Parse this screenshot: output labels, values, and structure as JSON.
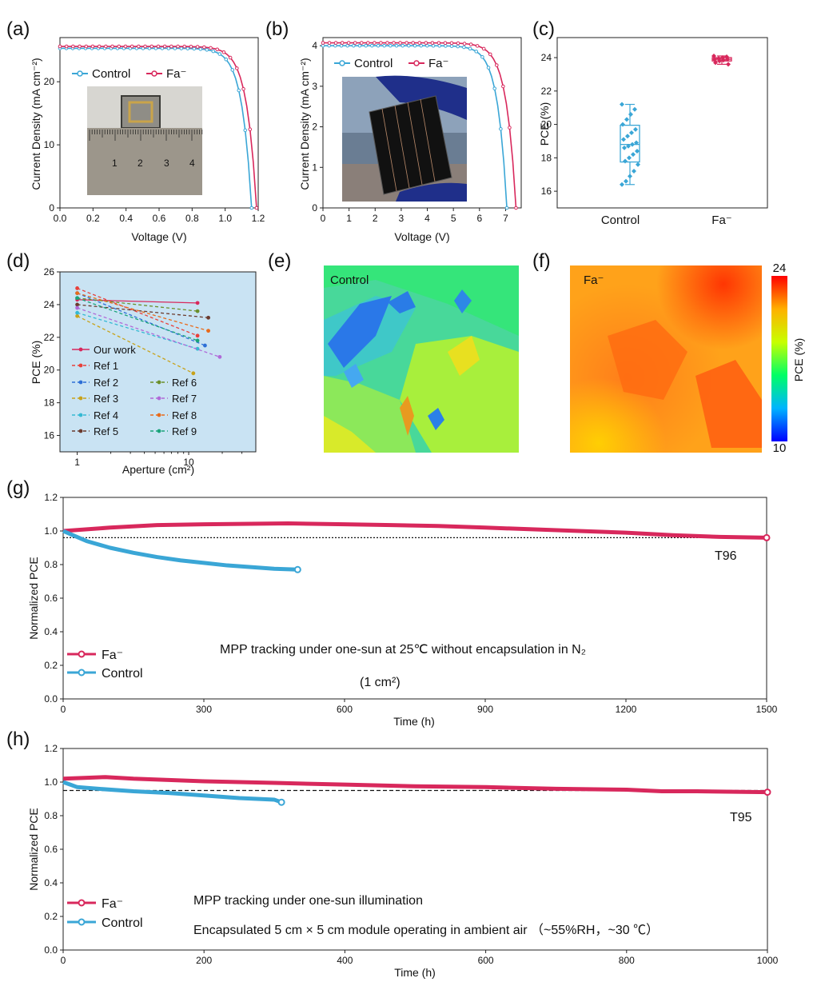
{
  "colors": {
    "control": "#3aa6d6",
    "fa": "#d8285c",
    "refline": "#111111",
    "inset_bg": "#c9e3f3"
  },
  "chart_data": [
    {
      "id": "a",
      "panel_label": "(a)",
      "type": "line",
      "xlabel": "Voltage (V)",
      "ylabel": "Current Density (mA cm⁻²)",
      "xlim": [
        0,
        1.2
      ],
      "ylim": [
        0,
        27
      ],
      "x_ticks": [
        "0.0",
        "0.2",
        "0.4",
        "0.6",
        "0.8",
        "1.0",
        "1.2"
      ],
      "y_ticks": [
        "0",
        "10",
        "20"
      ],
      "series": [
        {
          "name": "Control",
          "jsc": 25.3,
          "voc": 1.16,
          "knee": 0.95
        },
        {
          "name": "Fa⁻",
          "jsc": 25.6,
          "voc": 1.19,
          "knee": 1.0
        }
      ],
      "inset": {
        "description": "photo of 1 cm2 device on a ruler",
        "ruler_marks": [
          "1",
          "2",
          "3",
          "4"
        ]
      }
    },
    {
      "id": "b",
      "panel_label": "(b)",
      "type": "line",
      "xlabel": "Voltage (V)",
      "ylabel": "Current Density (mA cm⁻²)",
      "xlim": [
        0,
        7.6
      ],
      "ylim": [
        0,
        4.2
      ],
      "x_ticks": [
        "0",
        "1",
        "2",
        "3",
        "4",
        "5",
        "6",
        "7"
      ],
      "y_ticks": [
        "0",
        "1",
        "2",
        "3",
        "4"
      ],
      "series": [
        {
          "name": "Control",
          "jsc": 4.0,
          "voc": 7.05,
          "knee": 5.4
        },
        {
          "name": "Fa⁻",
          "jsc": 4.07,
          "voc": 7.4,
          "knee": 6.0
        }
      ],
      "inset": {
        "description": "photo of perovskite mini-module held by gloved hand"
      }
    },
    {
      "id": "c",
      "panel_label": "(c)",
      "type": "box",
      "ylabel": "PCE (%)",
      "ylim": [
        15,
        25.2
      ],
      "y_ticks": [
        "16",
        "18",
        "20",
        "22",
        "24"
      ],
      "categories": [
        "Control",
        "Fa⁻"
      ],
      "boxes": [
        {
          "name": "Control",
          "min": 16.4,
          "q1": 17.75,
          "median": 18.8,
          "q3": 19.95,
          "max": 21.2,
          "points": [
            21.2,
            20.9,
            20.6,
            20.3,
            20.0,
            19.7,
            19.5,
            19.3,
            19.1,
            18.9,
            18.8,
            18.7,
            18.6,
            18.4,
            18.2,
            18.0,
            17.8,
            17.6,
            17.2,
            16.9,
            16.6,
            16.4
          ]
        },
        {
          "name": "Fa⁻",
          "min": 23.6,
          "q1": 23.8,
          "median": 23.9,
          "q3": 24.0,
          "max": 24.1,
          "points": [
            24.1,
            24.05,
            24.0,
            23.95,
            23.9,
            23.9,
            23.85,
            23.8,
            23.7,
            23.6
          ]
        }
      ]
    },
    {
      "id": "d",
      "panel_label": "(d)",
      "type": "line",
      "xlabel": "Aperture (cm²)",
      "ylabel": "PCE (%)",
      "xscale": "log",
      "xlim": [
        0.7,
        40
      ],
      "ylim": [
        15,
        26
      ],
      "x_ticks": [
        "1",
        "10"
      ],
      "y_ticks": [
        "16",
        "18",
        "20",
        "22",
        "24",
        "26"
      ],
      "series": [
        {
          "name": "Our work",
          "color": "#d8285c",
          "dash": "solid",
          "x": [
            1,
            12
          ],
          "y": [
            24.3,
            24.1
          ]
        },
        {
          "name": "Ref 1",
          "color": "#e8403a",
          "dash": "dashed",
          "x": [
            1,
            12
          ],
          "y": [
            25.0,
            22.1
          ]
        },
        {
          "name": "Ref 2",
          "color": "#2d6fd6",
          "dash": "dashed",
          "x": [
            1,
            14
          ],
          "y": [
            24.7,
            21.5
          ]
        },
        {
          "name": "Ref 3",
          "color": "#c8a21a",
          "dash": "dashed",
          "x": [
            1,
            11
          ],
          "y": [
            23.3,
            19.8
          ]
        },
        {
          "name": "Ref 4",
          "color": "#35b9d3",
          "dash": "dashed",
          "x": [
            1,
            12
          ],
          "y": [
            23.5,
            21.3
          ]
        },
        {
          "name": "Ref 5",
          "color": "#6b3b2e",
          "dash": "dashed",
          "x": [
            1,
            15
          ],
          "y": [
            24.0,
            23.2
          ]
        },
        {
          "name": "Ref 6",
          "color": "#6b8f2a",
          "dash": "dashed",
          "x": [
            1,
            12
          ],
          "y": [
            24.4,
            23.6
          ]
        },
        {
          "name": "Ref 7",
          "color": "#b06ad8",
          "dash": "dashed",
          "x": [
            1,
            19
          ],
          "y": [
            23.8,
            20.8
          ]
        },
        {
          "name": "Ref 8",
          "color": "#e86a1a",
          "dash": "dashed",
          "x": [
            1,
            15
          ],
          "y": [
            24.7,
            22.4
          ]
        },
        {
          "name": "Ref 9",
          "color": "#1aa37a",
          "dash": "dashed",
          "x": [
            1,
            12
          ],
          "y": [
            24.4,
            21.8
          ]
        }
      ]
    },
    {
      "id": "e",
      "panel_label": "(e)",
      "type": "heatmap",
      "label": "Control",
      "value_range": [
        10,
        24
      ]
    },
    {
      "id": "f",
      "panel_label": "(f)",
      "type": "heatmap",
      "label": "Fa⁻",
      "colorbar": {
        "label": "PCE (%)",
        "min": "10",
        "max": "24"
      }
    },
    {
      "id": "g",
      "panel_label": "(g)",
      "type": "line",
      "xlabel": "Time (h)",
      "ylabel": "Normalized PCE",
      "xlim": [
        0,
        1500
      ],
      "ylim": [
        0,
        1.2
      ],
      "x_ticks": [
        "0",
        "300",
        "600",
        "900",
        "1200",
        "1500"
      ],
      "y_ticks": [
        "0.0",
        "0.2",
        "0.4",
        "0.6",
        "0.8",
        "1.0",
        "1.2"
      ],
      "reference": {
        "y": 0.96,
        "label": "T96"
      },
      "series": [
        {
          "name": "Fa⁻",
          "x": [
            0,
            100,
            200,
            300,
            400,
            480,
            600,
            700,
            800,
            900,
            1000,
            1100,
            1200,
            1300,
            1400,
            1500
          ],
          "y": [
            1.0,
            1.02,
            1.035,
            1.04,
            1.043,
            1.045,
            1.04,
            1.035,
            1.03,
            1.02,
            1.01,
            1.0,
            0.99,
            0.975,
            0.965,
            0.96
          ]
        },
        {
          "name": "Control",
          "x": [
            0,
            25,
            50,
            100,
            150,
            200,
            250,
            300,
            350,
            400,
            450,
            500
          ],
          "y": [
            1.0,
            0.97,
            0.94,
            0.9,
            0.87,
            0.845,
            0.825,
            0.81,
            0.795,
            0.785,
            0.775,
            0.77
          ]
        }
      ],
      "annotation": "MPP tracking under one-sun at 25℃ without encapsulation in N₂",
      "annotation2": "(1 cm²)"
    },
    {
      "id": "h",
      "panel_label": "(h)",
      "type": "line",
      "xlabel": "Time (h)",
      "ylabel": "Normalized PCE",
      "xlim": [
        0,
        1000
      ],
      "ylim": [
        0,
        1.2
      ],
      "x_ticks": [
        "0",
        "200",
        "400",
        "600",
        "800",
        "1000"
      ],
      "y_ticks": [
        "0.0",
        "0.2",
        "0.4",
        "0.6",
        "0.8",
        "1.0",
        "1.2"
      ],
      "reference": {
        "y": 0.95,
        "label": "T95"
      },
      "series": [
        {
          "name": "Fa⁻",
          "x": [
            0,
            30,
            60,
            100,
            200,
            300,
            400,
            500,
            600,
            700,
            800,
            850,
            900,
            1000
          ],
          "y": [
            1.02,
            1.025,
            1.03,
            1.02,
            1.005,
            0.995,
            0.985,
            0.975,
            0.97,
            0.96,
            0.955,
            0.945,
            0.945,
            0.94
          ]
        },
        {
          "name": "Control",
          "x": [
            0,
            10,
            20,
            50,
            100,
            150,
            200,
            250,
            300,
            310
          ],
          "y": [
            1.0,
            0.985,
            0.97,
            0.96,
            0.945,
            0.935,
            0.92,
            0.905,
            0.895,
            0.88
          ]
        }
      ],
      "annotation": "MPP tracking under one-sun illumination",
      "annotation2": "Encapsulated 5 cm × 5 cm module operating in ambient air （~55%RH，~30 ℃）"
    }
  ]
}
